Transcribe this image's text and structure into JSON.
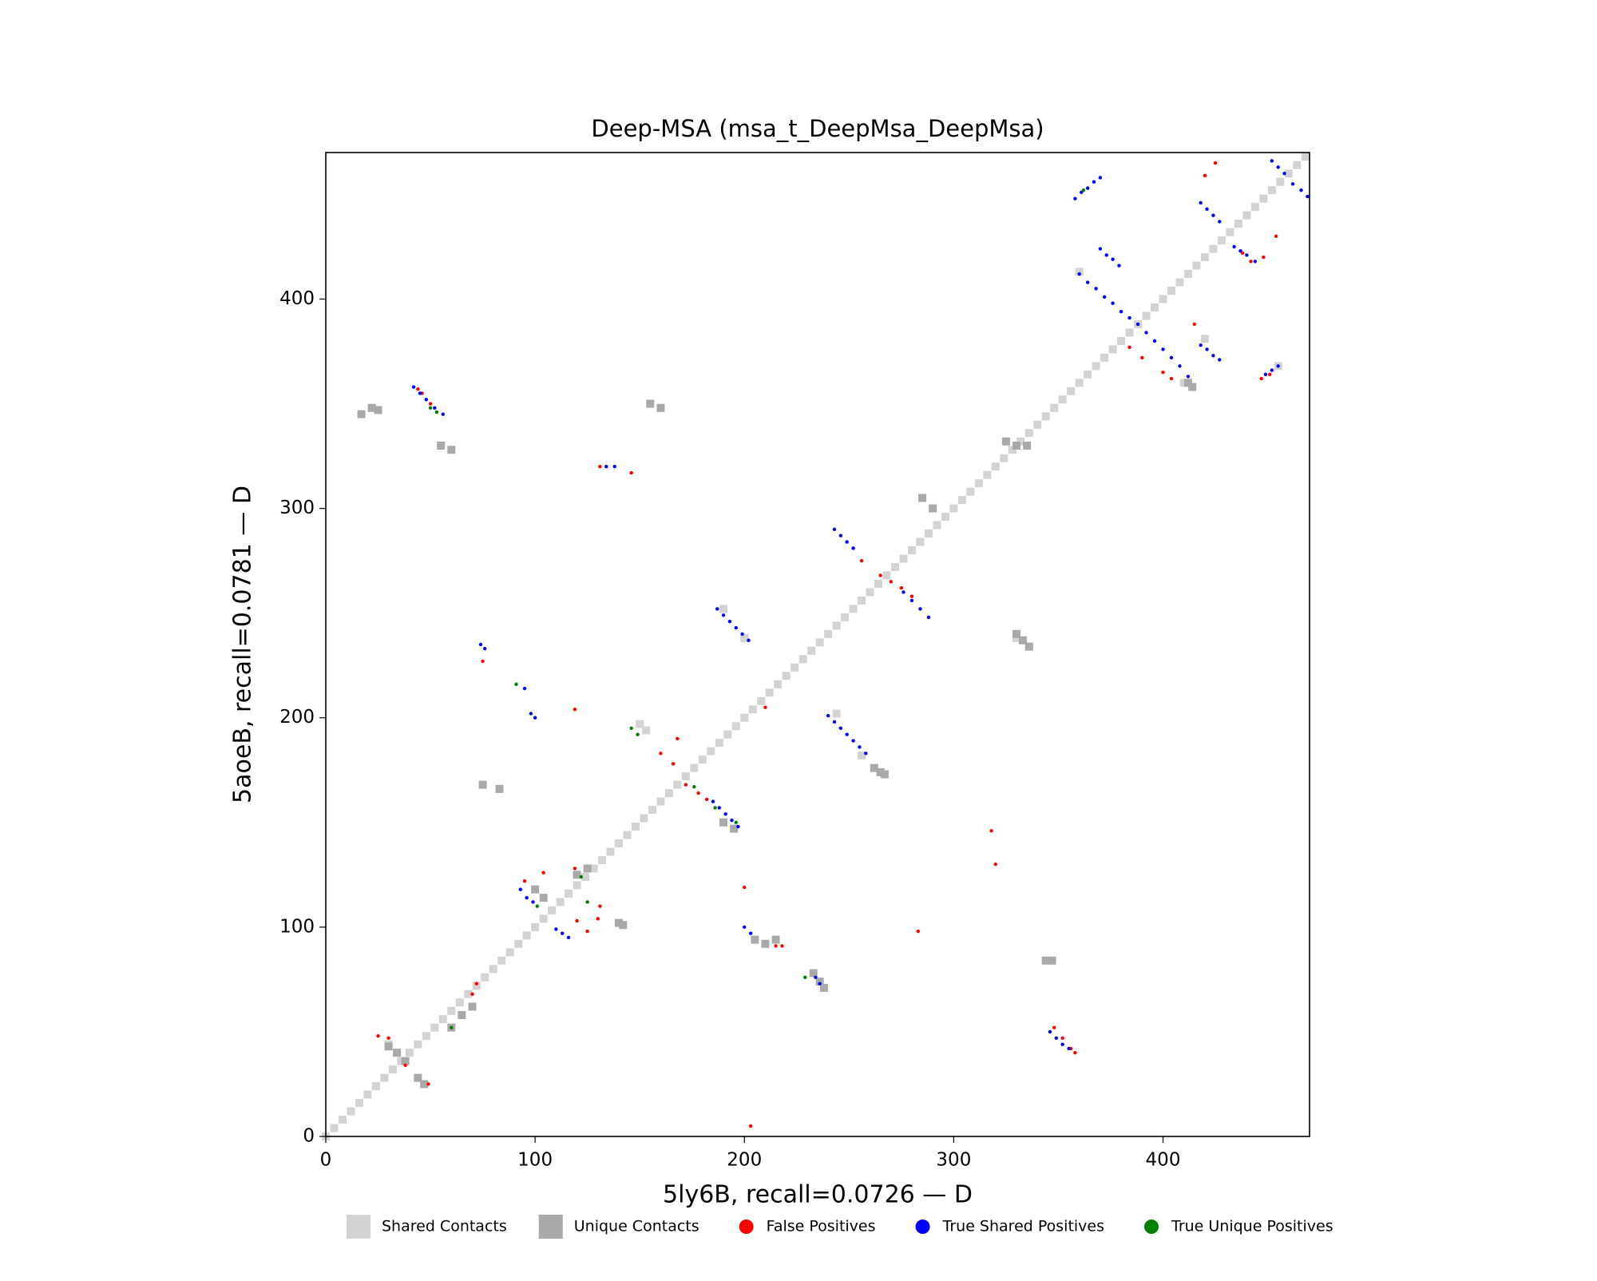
{
  "chart_data": {
    "type": "scatter",
    "title": "Deep-MSA (msa_t_DeepMsa_DeepMsa)",
    "x_label": "5ly6B, recall=0.0726 — D",
    "y_label": "5aoeB, recall=0.0781 — D",
    "xlim": [
      0,
      470
    ],
    "ylim": [
      0,
      470
    ],
    "xticks": [
      0,
      100,
      200,
      300,
      400
    ],
    "yticks": [
      0,
      100,
      200,
      300,
      400
    ],
    "legend": "bottom",
    "series": [
      {
        "name": "Shared Contacts",
        "color": "#d3d3d3",
        "marker": "square",
        "x": [
          0,
          4,
          8,
          12,
          16,
          20,
          24,
          28,
          32,
          36,
          40,
          44,
          48,
          52,
          56,
          60,
          64,
          68,
          72,
          76,
          80,
          84,
          88,
          92,
          96,
          100,
          104,
          108,
          112,
          116,
          120,
          124,
          128,
          132,
          136,
          140,
          144,
          148,
          152,
          156,
          160,
          164,
          168,
          172,
          176,
          180,
          184,
          188,
          192,
          196,
          200,
          204,
          208,
          212,
          216,
          220,
          224,
          228,
          232,
          236,
          240,
          244,
          248,
          252,
          256,
          260,
          264,
          268,
          272,
          276,
          280,
          284,
          288,
          292,
          296,
          300,
          304,
          308,
          312,
          316,
          320,
          324,
          328,
          332,
          336,
          340,
          344,
          348,
          352,
          356,
          360,
          364,
          368,
          372,
          376,
          380,
          384,
          388,
          392,
          396,
          400,
          404,
          408,
          412,
          416,
          420,
          424,
          428,
          432,
          436,
          440,
          444,
          448,
          452,
          456,
          460,
          464,
          468,
          150,
          153,
          190,
          200,
          244,
          256,
          360,
          410,
          420,
          455,
          330,
          336,
          30,
          34
        ],
        "y": [
          0,
          4,
          8,
          12,
          16,
          20,
          24,
          28,
          32,
          36,
          40,
          44,
          48,
          52,
          56,
          60,
          64,
          68,
          72,
          76,
          80,
          84,
          88,
          92,
          96,
          100,
          104,
          108,
          112,
          116,
          120,
          124,
          128,
          132,
          136,
          140,
          144,
          148,
          152,
          156,
          160,
          164,
          168,
          172,
          176,
          180,
          184,
          188,
          192,
          196,
          200,
          204,
          208,
          212,
          216,
          220,
          224,
          228,
          232,
          236,
          240,
          244,
          248,
          252,
          256,
          260,
          264,
          268,
          272,
          276,
          280,
          284,
          288,
          292,
          296,
          300,
          304,
          308,
          312,
          316,
          320,
          324,
          328,
          332,
          336,
          340,
          344,
          348,
          352,
          356,
          360,
          364,
          368,
          372,
          376,
          380,
          384,
          388,
          392,
          396,
          400,
          404,
          408,
          412,
          416,
          420,
          424,
          428,
          432,
          436,
          440,
          444,
          448,
          452,
          456,
          460,
          464,
          468,
          197,
          194,
          252,
          238,
          202,
          182,
          413,
          360,
          381,
          368,
          238,
          234,
          44,
          40
        ]
      },
      {
        "name": "Unique Contacts",
        "color": "#a9a9a9",
        "marker": "square",
        "x": [
          30,
          34,
          38,
          44,
          47,
          17,
          22,
          25,
          55,
          60,
          155,
          160,
          205,
          210,
          215,
          233,
          236,
          238,
          262,
          265,
          267,
          285,
          290,
          325,
          330,
          335,
          330,
          333,
          336,
          344,
          347,
          100,
          104,
          140,
          142,
          60,
          65,
          70,
          120,
          125,
          75,
          83,
          190,
          195,
          412,
          414
        ],
        "y": [
          43,
          40,
          36,
          28,
          25,
          345,
          348,
          347,
          330,
          328,
          350,
          348,
          94,
          92,
          94,
          78,
          74,
          71,
          176,
          174,
          173,
          305,
          300,
          332,
          330,
          330,
          240,
          237,
          234,
          84,
          84,
          118,
          114,
          102,
          101,
          52,
          58,
          62,
          125,
          128,
          168,
          166,
          150,
          147,
          360,
          358
        ]
      },
      {
        "name": "False Positives",
        "color": "#ff0000",
        "marker": "circle",
        "x": [
          44,
          46,
          50,
          172,
          178,
          182,
          166,
          160,
          270,
          275,
          280,
          256,
          252,
          348,
          352,
          356,
          358,
          384,
          390,
          400,
          404,
          438,
          442,
          448,
          454,
          425,
          420,
          415,
          447,
          451,
          75,
          120,
          125,
          130,
          131,
          95,
          104,
          119,
          25,
          30,
          38,
          49,
          70,
          72,
          215,
          218,
          200,
          318,
          320,
          119,
          210,
          203,
          131,
          146,
          168,
          265,
          283
        ],
        "y": [
          357,
          355,
          350,
          168,
          164,
          161,
          178,
          183,
          265,
          262,
          258,
          275,
          281,
          52,
          47,
          42,
          40,
          377,
          372,
          365,
          362,
          422,
          418,
          420,
          430,
          465,
          459,
          388,
          362,
          364,
          227,
          103,
          98,
          104,
          110,
          122,
          126,
          128,
          48,
          47,
          34,
          25,
          68,
          73,
          91,
          91,
          119,
          146,
          130,
          204,
          205,
          5,
          320,
          317,
          190,
          268,
          98
        ]
      },
      {
        "name": "True Shared Positives",
        "color": "#0000ff",
        "marker": "circle",
        "x": [
          42,
          45,
          48,
          52,
          56,
          243,
          246,
          249,
          252,
          276,
          280,
          284,
          288,
          187,
          190,
          193,
          196,
          199,
          202,
          240,
          243,
          246,
          249,
          252,
          255,
          258,
          185,
          188,
          191,
          194,
          197,
          93,
          96,
          99,
          110,
          113,
          116,
          346,
          349,
          352,
          355,
          200,
          203,
          234,
          236,
          76,
          74,
          95,
          98,
          100,
          134,
          138,
          358,
          361,
          364,
          367,
          370,
          452,
          455,
          458,
          462,
          466,
          469,
          418,
          421,
          424,
          427,
          434,
          437,
          440,
          444,
          370,
          373,
          376,
          379,
          360,
          364,
          368,
          372,
          376,
          380,
          384,
          388,
          392,
          396,
          400,
          404,
          408,
          412,
          418,
          421,
          424,
          427,
          449,
          452,
          455
        ],
        "y": [
          358,
          355,
          352,
          348,
          345,
          290,
          287,
          284,
          281,
          260,
          256,
          252,
          248,
          252,
          249,
          246,
          243,
          240,
          237,
          201,
          198,
          195,
          192,
          189,
          186,
          183,
          160,
          157,
          154,
          151,
          148,
          118,
          114,
          112,
          99,
          97,
          95,
          50,
          47,
          44,
          42,
          100,
          97,
          76,
          73,
          233,
          235,
          214,
          202,
          200,
          320,
          320,
          448,
          451,
          453,
          456,
          458,
          466,
          463,
          460,
          455,
          452,
          449,
          446,
          443,
          440,
          437,
          425,
          423,
          421,
          418,
          424,
          421,
          419,
          416,
          412,
          408,
          405,
          401,
          398,
          394,
          391,
          388,
          384,
          380,
          376,
          372,
          368,
          363,
          378,
          376,
          373,
          371,
          364,
          366,
          368
        ]
      },
      {
        "name": "True Unique Positives",
        "color": "#008000",
        "marker": "circle",
        "x": [
          50,
          53,
          146,
          149,
          176,
          186,
          91,
          101,
          122,
          125,
          60,
          229,
          362,
          196
        ],
        "y": [
          348,
          346,
          195,
          192,
          167,
          157,
          216,
          110,
          124,
          112,
          52,
          76,
          452,
          150
        ]
      }
    ]
  }
}
